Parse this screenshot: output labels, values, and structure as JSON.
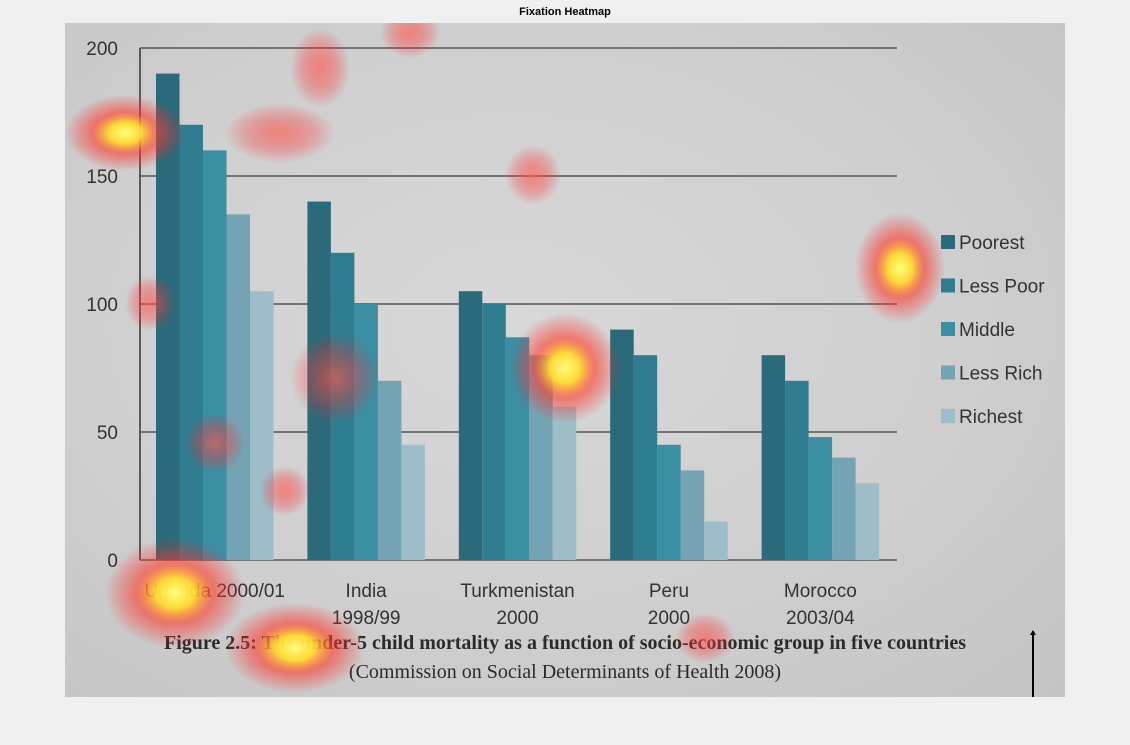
{
  "window": {
    "title": "Fixation Heatmap"
  },
  "chart_data": {
    "type": "bar",
    "title": "",
    "xlabel": "",
    "ylabel": "",
    "ylim": [
      0,
      200
    ],
    "y_ticks": [
      0,
      50,
      100,
      150,
      200
    ],
    "grid": true,
    "legend_position": "right",
    "categories": [
      [
        "Uganda 2000/01"
      ],
      [
        "India",
        "1998/99"
      ],
      [
        "Turkmenistan",
        "2000"
      ],
      [
        "Peru",
        "2000"
      ],
      [
        "Morocco",
        "2003/04"
      ]
    ],
    "series": [
      {
        "name": "Poorest",
        "color": "#2b6a7a",
        "values": [
          190,
          140,
          105,
          90,
          80
        ]
      },
      {
        "name": "Less Poor",
        "color": "#2f7d90",
        "values": [
          170,
          120,
          100,
          80,
          70
        ]
      },
      {
        "name": "Middle",
        "color": "#3a8fa3",
        "values": [
          160,
          100,
          87,
          45,
          48
        ]
      },
      {
        "name": "Less Rich",
        "color": "#74a4b3",
        "values": [
          135,
          70,
          80,
          35,
          40
        ]
      },
      {
        "name": "Richest",
        "color": "#9dbdc8",
        "values": [
          105,
          45,
          60,
          15,
          30
        ]
      }
    ]
  },
  "caption": {
    "line1": "Figure 2.5: The under-5 child mortality as a function of socio-economic group in five countries",
    "line2": "(Commission on Social Determinants of Health 2008)"
  }
}
